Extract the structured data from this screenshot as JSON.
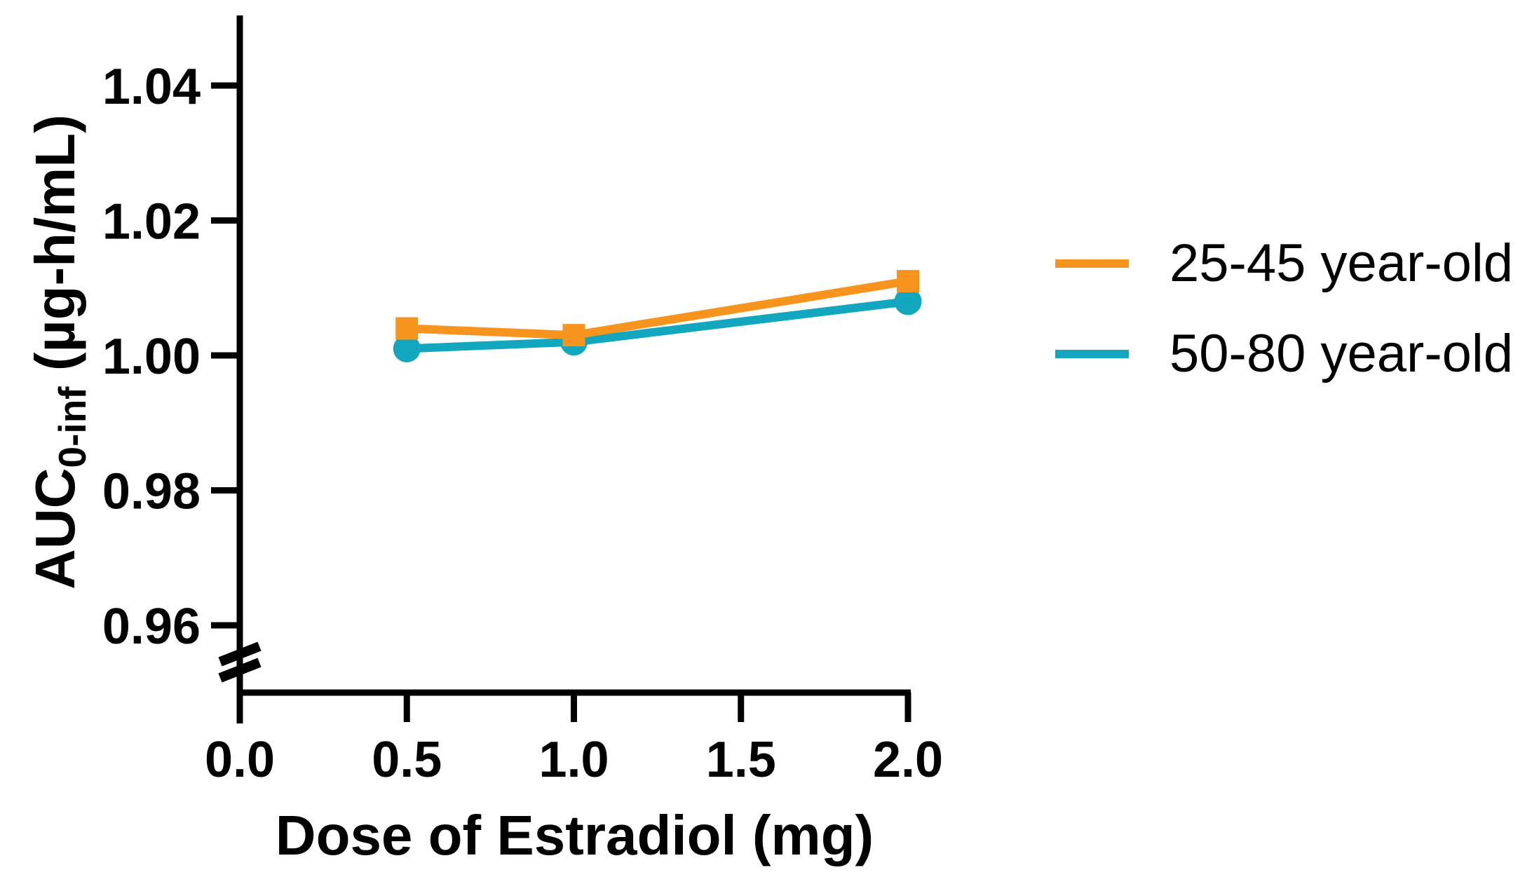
{
  "chart_data": {
    "type": "line",
    "title": "",
    "xlabel": "Dose of Estradiol (mg)",
    "ylabel": {
      "prefix": "AUC",
      "subscript": "0-inf",
      "suffix": " (µg-h/mL)"
    },
    "x": [
      0.5,
      1.0,
      2.0
    ],
    "series": [
      {
        "name": "25-45 year-old",
        "color": "#F7941E",
        "marker": "square",
        "values": [
          1.004,
          1.003,
          1.011
        ]
      },
      {
        "name": "50-80 year-old",
        "color": "#12A7BF",
        "marker": "circle",
        "values": [
          1.001,
          1.002,
          1.008
        ]
      }
    ],
    "x_ticks": [
      {
        "label": "0.0",
        "value": 0.0
      },
      {
        "label": "0.5",
        "value": 0.5
      },
      {
        "label": "1.0",
        "value": 1.0
      },
      {
        "label": "1.5",
        "value": 1.5
      },
      {
        "label": "2.0",
        "value": 2.0
      }
    ],
    "y_ticks": [
      {
        "label": "1.04",
        "value": 1.04
      },
      {
        "label": "1.02",
        "value": 1.02
      },
      {
        "label": "1.00",
        "value": 1.0
      },
      {
        "label": "0.98",
        "value": 0.98
      },
      {
        "label": "0.96",
        "value": 0.96
      }
    ],
    "xlim": [
      0.0,
      2.0
    ],
    "ylim": [
      0.96,
      1.05
    ],
    "y_axis_break": true,
    "grid": false,
    "legend_position": "right",
    "axis_color": "#000000"
  }
}
